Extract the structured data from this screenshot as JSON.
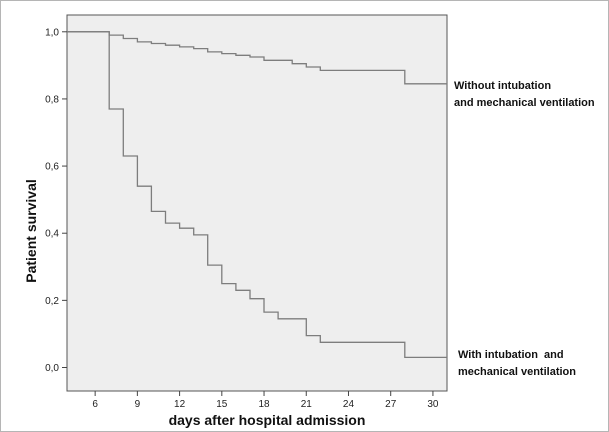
{
  "chart_data": {
    "type": "line",
    "step": true,
    "ylabel": "Patient survival",
    "xlabel": "days after hospital admission",
    "xlim": [
      4,
      31
    ],
    "ylim": [
      -0.07,
      1.05
    ],
    "xticks": [
      6,
      9,
      12,
      15,
      18,
      21,
      24,
      27,
      30
    ],
    "yticks": [
      {
        "value": 0.0,
        "label": "0,0"
      },
      {
        "value": 0.2,
        "label": "0,2"
      },
      {
        "value": 0.4,
        "label": "0,4"
      },
      {
        "value": 0.6,
        "label": "0,6"
      },
      {
        "value": 0.8,
        "label": "0,8"
      },
      {
        "value": 1.0,
        "label": "1,0"
      }
    ],
    "grid": false,
    "plot_background": "#eeeeee",
    "line_color": "#7d7d7d",
    "series": [
      {
        "name": "Without intubation and mechanical ventilation",
        "label_lines": [
          "Without intubation",
          "and mechanical ventilation"
        ],
        "points": [
          [
            4,
            1.0
          ],
          [
            7,
            1.0
          ],
          [
            7,
            0.99
          ],
          [
            8,
            0.99
          ],
          [
            8,
            0.98
          ],
          [
            9,
            0.98
          ],
          [
            9,
            0.97
          ],
          [
            10,
            0.97
          ],
          [
            10,
            0.965
          ],
          [
            11,
            0.965
          ],
          [
            11,
            0.96
          ],
          [
            12,
            0.96
          ],
          [
            12,
            0.955
          ],
          [
            13,
            0.955
          ],
          [
            13,
            0.95
          ],
          [
            14,
            0.95
          ],
          [
            14,
            0.94
          ],
          [
            15,
            0.94
          ],
          [
            15,
            0.935
          ],
          [
            16,
            0.935
          ],
          [
            16,
            0.93
          ],
          [
            17,
            0.93
          ],
          [
            17,
            0.925
          ],
          [
            18,
            0.925
          ],
          [
            18,
            0.915
          ],
          [
            20,
            0.915
          ],
          [
            20,
            0.905
          ],
          [
            21,
            0.905
          ],
          [
            21,
            0.895
          ],
          [
            22,
            0.895
          ],
          [
            22,
            0.885
          ],
          [
            28,
            0.885
          ],
          [
            28,
            0.845
          ],
          [
            31,
            0.845
          ]
        ]
      },
      {
        "name": "With intubation and mechanical ventilation",
        "label_lines": [
          "With intubation  and",
          "mechanical ventilation"
        ],
        "points": [
          [
            4,
            1.0
          ],
          [
            7,
            1.0
          ],
          [
            7,
            0.77
          ],
          [
            8,
            0.77
          ],
          [
            8,
            0.63
          ],
          [
            9,
            0.63
          ],
          [
            9,
            0.54
          ],
          [
            10,
            0.54
          ],
          [
            10,
            0.465
          ],
          [
            11,
            0.465
          ],
          [
            11,
            0.43
          ],
          [
            12,
            0.43
          ],
          [
            12,
            0.415
          ],
          [
            13,
            0.415
          ],
          [
            13,
            0.395
          ],
          [
            14,
            0.395
          ],
          [
            14,
            0.305
          ],
          [
            15,
            0.305
          ],
          [
            15,
            0.25
          ],
          [
            16,
            0.25
          ],
          [
            16,
            0.23
          ],
          [
            17,
            0.23
          ],
          [
            17,
            0.205
          ],
          [
            18,
            0.205
          ],
          [
            18,
            0.165
          ],
          [
            19,
            0.165
          ],
          [
            19,
            0.145
          ],
          [
            21,
            0.145
          ],
          [
            21,
            0.095
          ],
          [
            22,
            0.095
          ],
          [
            22,
            0.075
          ],
          [
            28,
            0.075
          ],
          [
            28,
            0.03
          ],
          [
            31,
            0.03
          ]
        ]
      }
    ]
  }
}
